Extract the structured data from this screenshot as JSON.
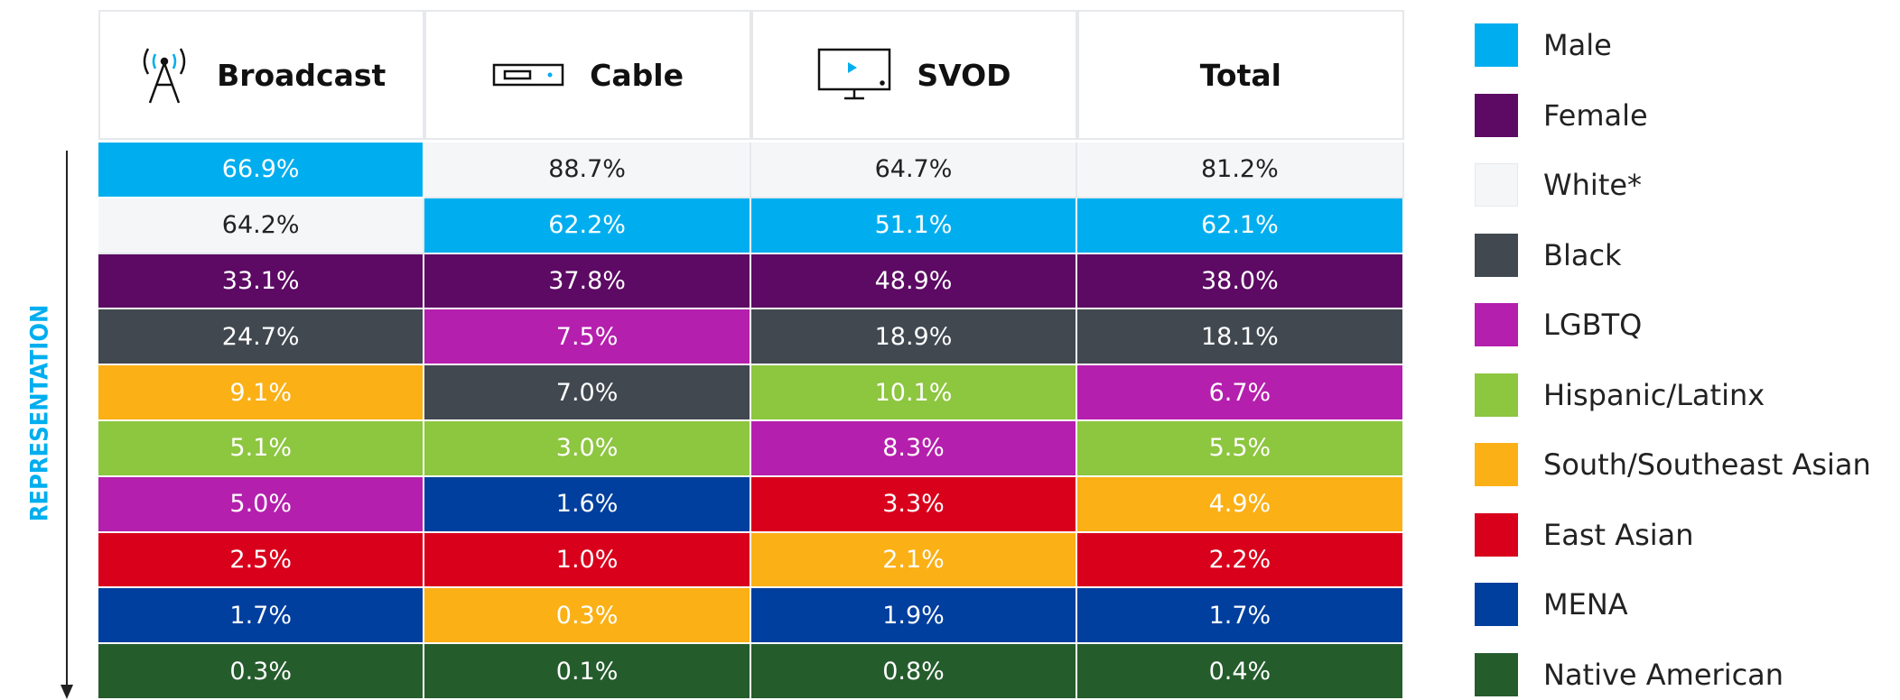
{
  "side_label": "REPRESENTATION",
  "table": {
    "columns": [
      "Broadcast",
      "Cable",
      "SVOD",
      "Total"
    ],
    "rows": [
      [
        {
          "text": "66.9%",
          "color": "#00aeef"
        },
        {
          "text": "88.7%",
          "color": "#f5f6f8"
        },
        {
          "text": "64.7%",
          "color": "#f5f6f8"
        },
        {
          "text": "81.2%",
          "color": "#f5f6f8"
        }
      ],
      [
        {
          "text": "64.2%",
          "color": "#f5f6f8"
        },
        {
          "text": "62.2%",
          "color": "#00aeef"
        },
        {
          "text": "51.1%",
          "color": "#00aeef"
        },
        {
          "text": "62.1%",
          "color": "#00aeef"
        }
      ],
      [
        {
          "text": "33.1%",
          "color": "#5c0a63"
        },
        {
          "text": "37.8%",
          "color": "#5c0a63"
        },
        {
          "text": "48.9%",
          "color": "#5c0a63"
        },
        {
          "text": "38.0%",
          "color": "#5c0a63"
        }
      ],
      [
        {
          "text": "24.7%",
          "color": "#414850"
        },
        {
          "text": "7.5%",
          "color": "#b51fad"
        },
        {
          "text": "18.9%",
          "color": "#414850"
        },
        {
          "text": "18.1%",
          "color": "#414850"
        }
      ],
      [
        {
          "text": "9.1%",
          "color": "#fbb016"
        },
        {
          "text": "7.0%",
          "color": "#414850"
        },
        {
          "text": "10.1%",
          "color": "#8dc63f"
        },
        {
          "text": "6.7%",
          "color": "#b51fad"
        }
      ],
      [
        {
          "text": "5.1%",
          "color": "#8dc63f"
        },
        {
          "text": "3.0%",
          "color": "#8dc63f"
        },
        {
          "text": "8.3%",
          "color": "#b51fad"
        },
        {
          "text": "5.5%",
          "color": "#8dc63f"
        }
      ],
      [
        {
          "text": "5.0%",
          "color": "#b51fad"
        },
        {
          "text": "1.6%",
          "color": "#003f9e"
        },
        {
          "text": "3.3%",
          "color": "#d9001b"
        },
        {
          "text": "4.9%",
          "color": "#fbb016"
        }
      ],
      [
        {
          "text": "2.5%",
          "color": "#d9001b"
        },
        {
          "text": "1.0%",
          "color": "#d9001b"
        },
        {
          "text": "2.1%",
          "color": "#fbb016"
        },
        {
          "text": "2.2%",
          "color": "#d9001b"
        }
      ],
      [
        {
          "text": "1.7%",
          "color": "#003f9e"
        },
        {
          "text": "0.3%",
          "color": "#fbb016"
        },
        {
          "text": "1.9%",
          "color": "#003f9e"
        },
        {
          "text": "1.7%",
          "color": "#003f9e"
        }
      ],
      [
        {
          "text": "0.3%",
          "color": "#255c2c"
        },
        {
          "text": "0.1%",
          "color": "#255c2c"
        },
        {
          "text": "0.8%",
          "color": "#255c2c"
        },
        {
          "text": "0.4%",
          "color": "#255c2c"
        }
      ]
    ]
  },
  "legend": [
    {
      "name": "Male",
      "color": "#00aeef"
    },
    {
      "name": "Female",
      "color": "#5c0a63"
    },
    {
      "name": "White*",
      "color": "#f5f6f8"
    },
    {
      "name": "Black",
      "color": "#414850"
    },
    {
      "name": "LGBTQ",
      "color": "#b51fad"
    },
    {
      "name": "Hispanic/Latinx",
      "color": "#8dc63f"
    },
    {
      "name": "South/Southeast Asian",
      "color": "#fbb016"
    },
    {
      "name": "East Asian",
      "color": "#d9001b"
    },
    {
      "name": "MENA",
      "color": "#003f9e"
    },
    {
      "name": "Native American",
      "color": "#255c2c"
    }
  ]
}
